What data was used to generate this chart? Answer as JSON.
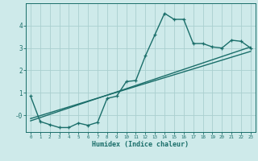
{
  "xlabel": "Humidex (Indice chaleur)",
  "bg_color": "#ceeaea",
  "grid_color": "#aacfcf",
  "line_color": "#1a6e6a",
  "xlim": [
    -0.5,
    23.5
  ],
  "ylim": [
    -0.75,
    5.0
  ],
  "xticks": [
    0,
    1,
    2,
    3,
    4,
    5,
    6,
    7,
    8,
    9,
    10,
    11,
    12,
    13,
    14,
    15,
    16,
    17,
    18,
    19,
    20,
    21,
    22,
    23
  ],
  "yticks": [
    0,
    1,
    2,
    3,
    4
  ],
  "ytick_labels": [
    "-0",
    "1",
    "2",
    "3",
    "4"
  ],
  "curve_x": [
    0,
    1,
    2,
    3,
    4,
    5,
    6,
    7,
    8,
    9,
    10,
    11,
    12,
    13,
    14,
    15,
    16,
    17,
    18,
    19,
    20,
    21,
    22,
    23
  ],
  "curve_y": [
    0.85,
    -0.28,
    -0.42,
    -0.55,
    -0.55,
    -0.35,
    -0.45,
    -0.32,
    0.75,
    0.85,
    1.5,
    1.55,
    2.65,
    3.6,
    4.55,
    4.28,
    4.28,
    3.2,
    3.2,
    3.05,
    3.0,
    3.35,
    3.3,
    3.0
  ],
  "line1_x": [
    0,
    23
  ],
  "line1_y": [
    -0.15,
    2.85
  ],
  "line2_x": [
    0,
    23
  ],
  "line2_y": [
    -0.25,
    3.05
  ],
  "marker_size": 3.5,
  "line_width": 1.0
}
